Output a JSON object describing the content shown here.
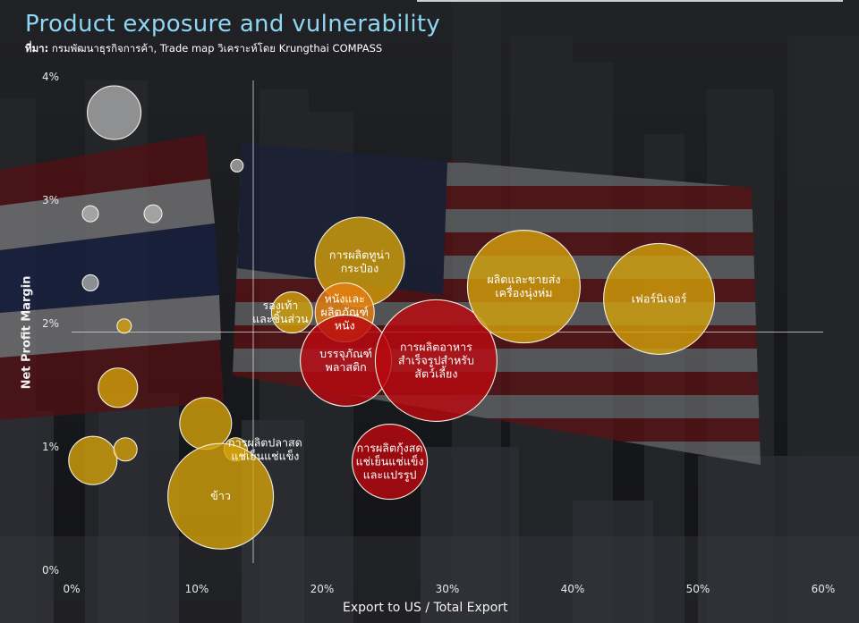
{
  "header": {
    "title": "Product exposure and vulnerability",
    "source_prefix": "ที่มา:",
    "source_text": " กรมพัฒนาธุรกิจการค้า, Trade map วิเคราะห์โดย Krungthai COMPASS"
  },
  "colors": {
    "title": "#8fd6f2",
    "yellow": "#d4a10a",
    "orange": "#e07d10",
    "red": "#b8090f",
    "grey": "#bdbdbd"
  },
  "chart_data": {
    "type": "scatter",
    "title": "Product exposure and vulnerability",
    "xlabel": "Export to US / Total Export",
    "ylabel": "Net Profit Margin",
    "xlim": [
      0,
      60
    ],
    "ylim": [
      0,
      4
    ],
    "xticks": [
      "0%",
      "10%",
      "20%",
      "30%",
      "40%",
      "50%",
      "60%"
    ],
    "yticks": [
      "0%",
      "1%",
      "2%",
      "3%",
      "4%"
    ],
    "reference_lines": {
      "x": 14.5,
      "y": 1.93
    },
    "points": [
      {
        "label": "",
        "x": 3.4,
        "y": 3.71,
        "size": 30,
        "color": "grey"
      },
      {
        "label": "",
        "x": 13.2,
        "y": 3.28,
        "size": 7,
        "color": "grey"
      },
      {
        "label": "",
        "x": 1.5,
        "y": 2.89,
        "size": 9,
        "color": "grey"
      },
      {
        "label": "",
        "x": 6.5,
        "y": 2.89,
        "size": 10,
        "color": "grey"
      },
      {
        "label": "",
        "x": 1.5,
        "y": 2.33,
        "size": 9,
        "color": "grey"
      },
      {
        "label": "",
        "x": 4.2,
        "y": 1.98,
        "size": 8,
        "color": "yellow"
      },
      {
        "label": "",
        "x": 3.7,
        "y": 1.48,
        "size": 22,
        "color": "yellow"
      },
      {
        "label": "",
        "x": 10.7,
        "y": 1.19,
        "size": 29,
        "color": "yellow"
      },
      {
        "label": "",
        "x": 1.7,
        "y": 0.89,
        "size": 27,
        "color": "yellow"
      },
      {
        "label": "",
        "x": 4.3,
        "y": 0.98,
        "size": 13,
        "color": "yellow"
      },
      {
        "label": "การผลิตปลาสดแช่เย็นแช่แข็ง",
        "x": 13.1,
        "y": 0.98,
        "size": 13,
        "color": "yellow"
      },
      {
        "label": "ข้าว",
        "x": 11.9,
        "y": 0.6,
        "size": 59,
        "color": "yellow"
      },
      {
        "label": "รองเท้าและชิ้นส่วน",
        "x": 17.6,
        "y": 2.09,
        "size": 23,
        "color": "yellow"
      },
      {
        "label": "การผลิตทูน่ากระป๋อง",
        "x": 23.0,
        "y": 2.5,
        "size": 50,
        "color": "yellow"
      },
      {
        "label": "หนังและผลิตภัณฑ์หนัง",
        "x": 21.8,
        "y": 2.09,
        "size": 33,
        "color": "orange"
      },
      {
        "label": "บรรจุภัณฑ์พลาสติก",
        "x": 21.9,
        "y": 1.7,
        "size": 51,
        "color": "red"
      },
      {
        "label": "การผลิตอาหารสำเร็จรูปสำหรับสัตว์เลี้ยง",
        "x": 29.1,
        "y": 1.7,
        "size": 68,
        "color": "red"
      },
      {
        "label": "การผลิตกุ้งสดแช่เย็นแช่แข็งและแปรรูป",
        "x": 25.4,
        "y": 0.88,
        "size": 42,
        "color": "red"
      },
      {
        "label": "ผลิตและขายส่งเครื่องนุ่งห่ม",
        "x": 36.1,
        "y": 2.3,
        "size": 63,
        "color": "yellow"
      },
      {
        "label": "เฟอร์นิเจอร์",
        "x": 46.9,
        "y": 2.2,
        "size": 62,
        "color": "yellow"
      }
    ]
  }
}
